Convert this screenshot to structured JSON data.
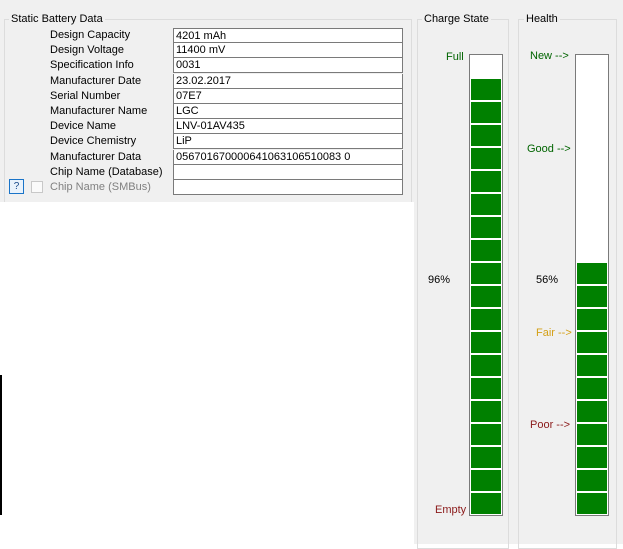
{
  "static": {
    "title": "Static Battery Data",
    "rows": [
      {
        "label": "Design Capacity",
        "value": "4201 mAh"
      },
      {
        "label": "Design Voltage",
        "value": "11400 mV"
      },
      {
        "label": "Specification Info",
        "value": "0031"
      },
      {
        "label": "Manufacturer Date",
        "value": "23.02.2017"
      },
      {
        "label": "Serial Number",
        "value": "07E7"
      },
      {
        "label": "Manufacturer Name",
        "value": "LGC"
      },
      {
        "label": "Device Name",
        "value": "LNV-01AV435"
      },
      {
        "label": "Device Chemistry",
        "value": "LiP"
      },
      {
        "label": "Manufacturer Data",
        "value": "056701670000641063106510083 0"
      },
      {
        "label": "Chip Name (Database)",
        "value": ""
      },
      {
        "label": "Chip Name (SMBus)",
        "value": ""
      }
    ],
    "help_label": "?"
  },
  "charge": {
    "title": "Charge State",
    "full_label": "Full",
    "empty_label": "Empty",
    "percent_label": "96%",
    "level_fraction": 0.96,
    "color": "#008000"
  },
  "health": {
    "title": "Health",
    "new_label": "New -->",
    "good_label": "Good -->",
    "fair_label": "Fair -->",
    "poor_label": "Poor -->",
    "percent_label": "56%",
    "level_fraction": 0.56,
    "colors": {
      "new": "#008000",
      "good": "#008000",
      "fair": "#d4a017",
      "poor": "#8b1a1a",
      "bar": "#008000"
    }
  }
}
